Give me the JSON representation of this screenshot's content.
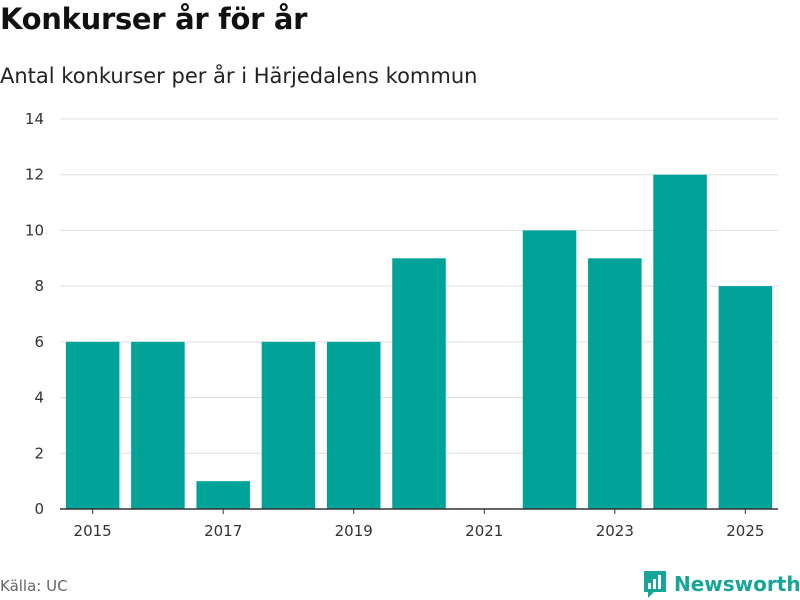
{
  "header": {
    "title": "Konkurser år för år",
    "subtitle": "Antal konkurser per år i Härjedalens kommun"
  },
  "footer": {
    "source": "Källa: UC",
    "brand": "Newsworthy"
  },
  "colors": {
    "bar": "#00a398",
    "grid": "#dddddd",
    "baseline": "#333333",
    "brand": "#17a597"
  },
  "chart_data": {
    "type": "bar",
    "categories": [
      "2015",
      "2016",
      "2017",
      "2018",
      "2019",
      "2020",
      "2021",
      "2022",
      "2023",
      "2024",
      "2025"
    ],
    "values": [
      6,
      6,
      1,
      6,
      6,
      9,
      0,
      10,
      9,
      12,
      8
    ],
    "x_tick_labels": [
      "2015",
      "2017",
      "2019",
      "2021",
      "2023",
      "2025"
    ],
    "y_ticks": [
      0,
      2,
      4,
      6,
      8,
      10,
      12,
      14
    ],
    "ylim": [
      0,
      14
    ],
    "grid": true,
    "legend": "none",
    "xlabel": "",
    "ylabel": ""
  }
}
